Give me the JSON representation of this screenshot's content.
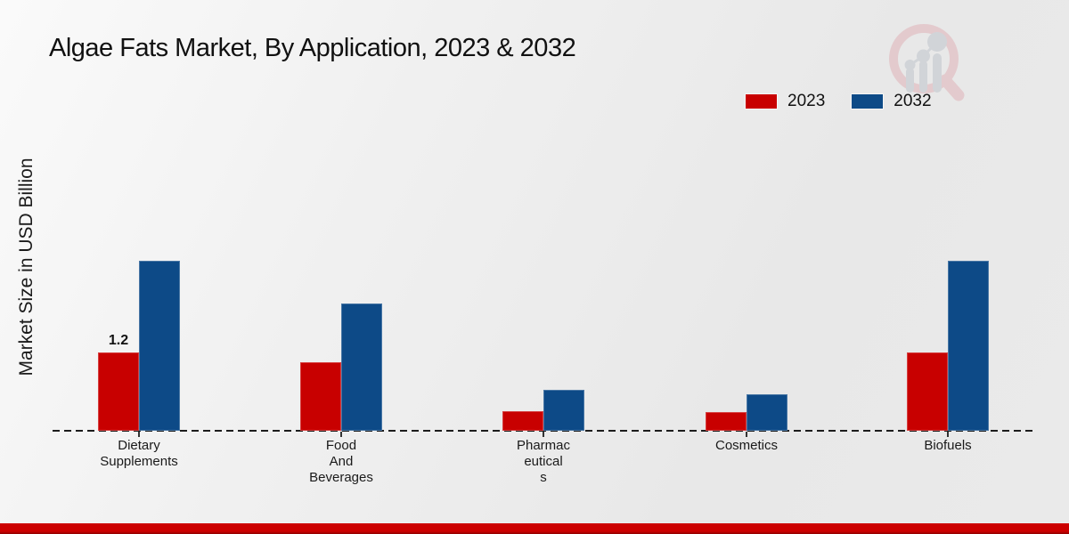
{
  "title": "Algae Fats Market, By Application, 2023 & 2032",
  "y_axis_label": "Market Size in USD Billion",
  "legend": [
    {
      "label": "2023",
      "color": "#c80000"
    },
    {
      "label": "2032",
      "color": "#0d4a87"
    }
  ],
  "colors": {
    "series_2023": "#c80000",
    "series_2032": "#0d4a87",
    "footer_band": "#cc0000",
    "axis_line": "#1c1c1c",
    "text": "#111111"
  },
  "watermark": "magnifier-bar-chart-logo",
  "chart_data": {
    "type": "bar",
    "title": "Algae Fats Market, By Application, 2023 & 2032",
    "categories": [
      "Dietary Supplements",
      "Food And Beverages",
      "Pharmaceuticals",
      "Cosmetics",
      "Biofuels"
    ],
    "category_label_lines": [
      [
        "Dietary",
        "Supplements"
      ],
      [
        "Food",
        "And",
        "Beverages"
      ],
      [
        "Pharmac",
        "eutical",
        "s"
      ],
      [
        "Cosmetics"
      ],
      [
        "Biofuels"
      ]
    ],
    "series": [
      {
        "name": "2023",
        "color": "#c80000",
        "values": [
          1.2,
          1.05,
          0.3,
          0.28,
          1.2
        ],
        "value_labels": [
          "1.2",
          "",
          "",
          "",
          ""
        ]
      },
      {
        "name": "2032",
        "color": "#0d4a87",
        "values": [
          2.6,
          1.95,
          0.63,
          0.56,
          2.6
        ],
        "value_labels": [
          "",
          "",
          "",
          "",
          ""
        ]
      }
    ],
    "xlabel": "",
    "ylabel": "Market Size in USD Billion",
    "ylim": [
      0,
      3
    ],
    "grid": false,
    "baseline_style": "dashed",
    "legend_position": "top-right"
  }
}
